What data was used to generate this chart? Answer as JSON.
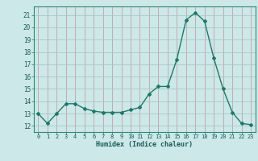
{
  "x": [
    0,
    1,
    2,
    3,
    4,
    5,
    6,
    7,
    8,
    9,
    10,
    11,
    12,
    13,
    14,
    15,
    16,
    17,
    18,
    19,
    20,
    21,
    22,
    23
  ],
  "y": [
    13,
    12.2,
    13,
    13.8,
    13.8,
    13.4,
    13.2,
    13.1,
    13.1,
    13.1,
    13.3,
    13.5,
    14.6,
    15.2,
    15.2,
    17.4,
    20.6,
    21.2,
    20.5,
    17.5,
    15.0,
    13.1,
    12.2,
    12.1
  ],
  "xlabel": "Humidex (Indice chaleur)",
  "ylim": [
    11.5,
    21.7
  ],
  "xlim": [
    -0.5,
    23.5
  ],
  "yticks": [
    12,
    13,
    14,
    15,
    16,
    17,
    18,
    19,
    20,
    21
  ],
  "xticks": [
    0,
    1,
    2,
    3,
    4,
    5,
    6,
    7,
    8,
    9,
    10,
    11,
    12,
    13,
    14,
    15,
    16,
    17,
    18,
    19,
    20,
    21,
    22,
    23
  ],
  "line_color": "#1a7a6a",
  "marker_color": "#1a7a6a",
  "bg_color": "#cce8e8",
  "vgrid_color": "#c8a0a8",
  "hgrid_color": "#a8c8c8"
}
